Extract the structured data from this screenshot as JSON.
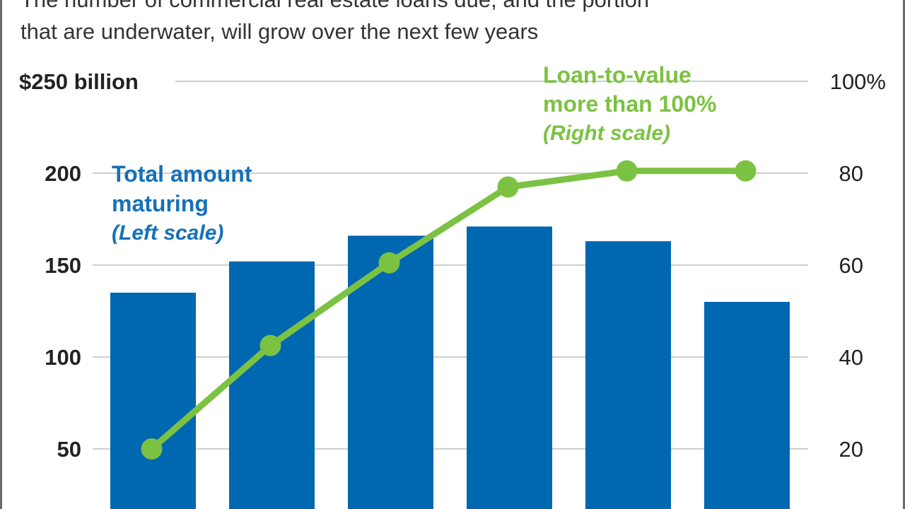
{
  "subtitle": {
    "line1": "The number of commercial real estate loans due, and the portion",
    "line2": "that are underwater, will grow over the next few years"
  },
  "annotations": {
    "bars_label_line1": "Total amount",
    "bars_label_line2": "maturing",
    "bars_scale": "(Left scale)",
    "line_label_line1": "Loan-to-value",
    "line_label_line2": "more than 100%",
    "line_scale": "(Right scale)"
  },
  "colors": {
    "bars": "#0067b1",
    "line": "#7cc242",
    "grid": "#cfcfcf"
  },
  "chart_data": {
    "type": "bar",
    "left_axis": {
      "ticks": [
        "50",
        "100",
        "150",
        "200",
        "$250 billion"
      ],
      "tick_values": [
        50,
        100,
        150,
        200,
        250
      ],
      "ylim": [
        0,
        250
      ]
    },
    "right_axis": {
      "ticks": [
        "20",
        "40",
        "60",
        "80",
        "100%"
      ],
      "tick_values": [
        20,
        40,
        60,
        80,
        100
      ],
      "ylim": [
        0,
        100
      ]
    },
    "grid": true,
    "series": [
      {
        "name": "Total amount maturing",
        "type": "bar",
        "axis": "left",
        "values": [
          135,
          152,
          166,
          171,
          163,
          130
        ]
      },
      {
        "name": "Loan-to-value more than 100%",
        "type": "line",
        "axis": "right",
        "values": [
          20,
          42.5,
          60.5,
          77,
          80.5,
          80.5
        ]
      }
    ]
  }
}
